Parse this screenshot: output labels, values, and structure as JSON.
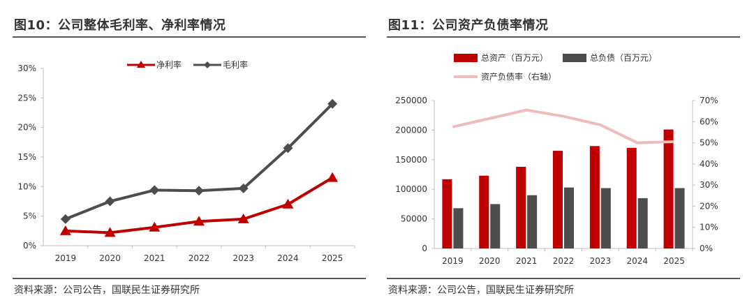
{
  "left": {
    "title": "图10：公司整体毛利率、净利率情况",
    "source": "资料来源：公司公告，国联民生证券研究所"
  },
  "right": {
    "title": "图11：公司资产负债率情况",
    "source": "资料来源：公司公告，国联民生证券研究所"
  },
  "colors": {
    "red": "#c00000",
    "dark": "#4d4d4d",
    "pink": "#eebcbc",
    "axis": "#bfbfbf"
  },
  "chart_data": [
    {
      "type": "line",
      "categories": [
        "2019",
        "2020",
        "2021",
        "2022",
        "2023",
        "2024",
        "2025"
      ],
      "series": [
        {
          "name": "净利率",
          "values": [
            2.5,
            2.2,
            3.1,
            4.1,
            4.5,
            7.0,
            11.5
          ],
          "color": "#c00000",
          "marker": "triangle"
        },
        {
          "name": "毛利率",
          "values": [
            4.5,
            7.5,
            9.4,
            9.3,
            9.7,
            16.5,
            24.0
          ],
          "color": "#4d4d4d",
          "marker": "diamond"
        }
      ],
      "ylim": [
        0,
        30
      ],
      "yticks": [
        "0%",
        "5%",
        "10%",
        "15%",
        "20%",
        "25%",
        "30%"
      ],
      "legend": "top-center"
    },
    {
      "type": "bar",
      "categories": [
        "2019",
        "2020",
        "2021",
        "2022",
        "2023",
        "2024",
        "2025"
      ],
      "series": [
        {
          "name": "总资产（百万元）",
          "values": [
            117000,
            123000,
            138000,
            165000,
            173000,
            170000,
            201000
          ],
          "color": "#c00000",
          "axis": "left"
        },
        {
          "name": "总负债（百万元）",
          "values": [
            68000,
            75000,
            90000,
            103000,
            102000,
            85000,
            102000
          ],
          "color": "#4d4d4d",
          "axis": "left"
        },
        {
          "name": "资产负债率（右轴）",
          "type": "line",
          "values": [
            57.5,
            61.5,
            65.5,
            62.5,
            58.5,
            50.0,
            50.5
          ],
          "color": "#eebcbc",
          "axis": "right"
        }
      ],
      "ylim": [
        0,
        250000
      ],
      "yticks": [
        "0",
        "50000",
        "100000",
        "150000",
        "200000",
        "250000"
      ],
      "y2lim": [
        0,
        70
      ],
      "y2ticks": [
        "0%",
        "10%",
        "20%",
        "30%",
        "40%",
        "50%",
        "60%",
        "70%"
      ],
      "legend": "top"
    }
  ]
}
